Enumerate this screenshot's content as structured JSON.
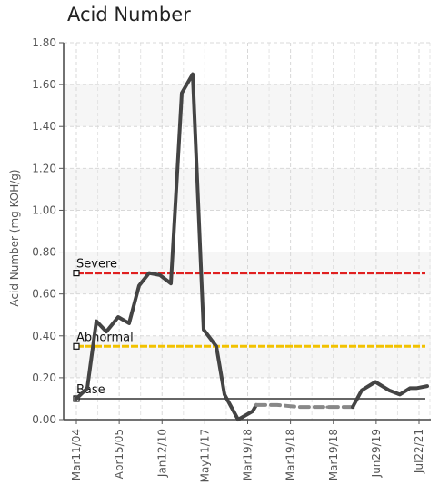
{
  "chart_data": {
    "type": "line",
    "title": "Acid Number",
    "ylabel": "Acid Number (mg KOH/g)",
    "xlabel": "",
    "ylim": [
      0,
      1.8
    ],
    "y_ticks": [
      "0.00",
      "0.20",
      "0.40",
      "0.60",
      "0.80",
      "1.00",
      "1.20",
      "1.40",
      "1.60",
      "1.80"
    ],
    "x_tick_labels": [
      "Mar11/04",
      "Apr15/05",
      "Jan12/10",
      "May11/17",
      "Mar19/18",
      "Mar19/18",
      "Mar19/18",
      "Jun29/19",
      "Jul22/21"
    ],
    "grid": true,
    "series": [
      {
        "values": [
          0.1,
          0.15,
          0.47,
          0.42,
          0.49,
          0.46,
          0.64,
          0.7,
          0.69,
          0.65,
          1.56,
          1.65,
          0.43,
          0.35,
          0.12,
          0.0,
          0.04,
          0.07
        ],
        "color": "#444444",
        "style": "solid"
      },
      {
        "values": [
          0.07,
          0.07,
          0.06,
          0.06,
          0.06
        ],
        "color": "#888888",
        "style": "dashed"
      },
      {
        "values": [
          0.06,
          0.14,
          0.18,
          0.14,
          0.12,
          0.15,
          0.15,
          0.16
        ],
        "color": "#444444",
        "style": "solid"
      }
    ],
    "thresholds": [
      {
        "name": "Severe",
        "value": 0.7,
        "color": "#e02020"
      },
      {
        "name": "Abnormal",
        "value": 0.35,
        "color": "#f2c200"
      },
      {
        "name": "Base",
        "value": 0.1,
        "color": "#666666"
      }
    ]
  }
}
